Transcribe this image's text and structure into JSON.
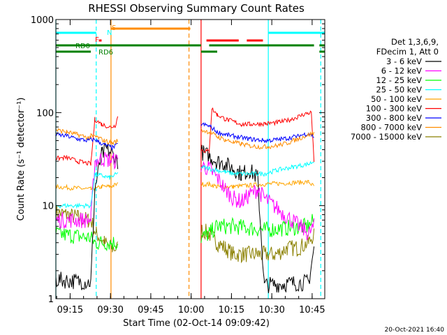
{
  "chart_data": {
    "type": "line",
    "title": "RHESSI Observing Summary Count Rates",
    "xlabel": "Start Time (02-Oct-14 09:09:42)",
    "ylabel": "Count Rate (s⁻¹ detector⁻¹)",
    "yscale": "log",
    "ylim": [
      1,
      1000
    ],
    "xlim_minutes": [
      0,
      100
    ],
    "x_ticks": [
      {
        "m": 5.3,
        "label": "09:15"
      },
      {
        "m": 20.3,
        "label": "09:30"
      },
      {
        "m": 35.3,
        "label": "09:45"
      },
      {
        "m": 50.3,
        "label": "10:00"
      },
      {
        "m": 65.3,
        "label": "10:15"
      },
      {
        "m": 80.3,
        "label": "10:30"
      },
      {
        "m": 95.3,
        "label": "10:45"
      }
    ],
    "y_ticks": [
      {
        "v": 1,
        "label": "1"
      },
      {
        "v": 10,
        "label": "10"
      },
      {
        "v": 100,
        "label": "100"
      },
      {
        "v": 1000,
        "label": "1000"
      }
    ],
    "legend_header": [
      "Det 1,3,6,9,",
      "FDecim 1, Att 0"
    ],
    "legend_position": "right",
    "series": [
      {
        "name": "3 - 6 keV",
        "color": "#000000",
        "values": [
          [
            0,
            1.6
          ],
          [
            13,
            1.5
          ],
          [
            14.5,
            15
          ],
          [
            17,
            35
          ],
          [
            19,
            40
          ],
          [
            21,
            36
          ],
          [
            23,
            30
          ],
          [
            54,
            38
          ],
          [
            57,
            34
          ],
          [
            60,
            30
          ],
          [
            63,
            28
          ],
          [
            66,
            25
          ],
          [
            69,
            22
          ],
          [
            72,
            24
          ],
          [
            75,
            20
          ],
          [
            77.5,
            1.4
          ],
          [
            94,
            1.5
          ],
          [
            96,
            3.5
          ]
        ]
      },
      {
        "name": "6 - 12 keV",
        "color": "#ff00ff",
        "values": [
          [
            0,
            7
          ],
          [
            13,
            7
          ],
          [
            14.5,
            30
          ],
          [
            17,
            32
          ],
          [
            20,
            31
          ],
          [
            23,
            30
          ],
          [
            54,
            27
          ],
          [
            57,
            25
          ],
          [
            60,
            20
          ],
          [
            63,
            15
          ],
          [
            66,
            12
          ],
          [
            69,
            11
          ],
          [
            72,
            13
          ],
          [
            75,
            15
          ],
          [
            77.5,
            12
          ],
          [
            94,
            5
          ],
          [
            96,
            6
          ]
        ]
      },
      {
        "name": "12 - 25 keV",
        "color": "#00ff00",
        "values": [
          [
            0,
            5
          ],
          [
            13,
            4.5
          ],
          [
            14.5,
            4
          ],
          [
            23,
            4
          ],
          [
            54,
            4.5
          ],
          [
            57,
            5
          ],
          [
            60,
            6
          ],
          [
            66,
            6
          ],
          [
            77.5,
            5.5
          ],
          [
            94,
            6
          ],
          [
            96,
            7
          ]
        ]
      },
      {
        "name": "25 - 50 keV",
        "color": "#00ffff",
        "values": [
          [
            0,
            10
          ],
          [
            13,
            10
          ],
          [
            14.5,
            22
          ],
          [
            17,
            21
          ],
          [
            20,
            20
          ],
          [
            23,
            22
          ],
          [
            54,
            26
          ],
          [
            57,
            25
          ],
          [
            60,
            24
          ],
          [
            63,
            23
          ],
          [
            66,
            22
          ],
          [
            69,
            22
          ],
          [
            72,
            22
          ],
          [
            75,
            22
          ],
          [
            77.5,
            22
          ],
          [
            82,
            24
          ],
          [
            88,
            26
          ],
          [
            94,
            28
          ],
          [
            96,
            30
          ]
        ]
      },
      {
        "name": "50 - 100 keV",
        "color": "#ffa500",
        "values": [
          [
            0,
            16
          ],
          [
            13,
            15
          ],
          [
            14.5,
            15
          ],
          [
            17,
            16
          ],
          [
            20,
            16
          ],
          [
            23,
            17
          ],
          [
            54,
            17
          ],
          [
            57,
            17
          ],
          [
            60,
            16
          ],
          [
            66,
            16
          ],
          [
            77.5,
            17
          ],
          [
            94,
            18
          ],
          [
            96,
            16
          ]
        ]
      },
      {
        "name": "100 - 300 keV",
        "color": "#ff0000",
        "values": [
          [
            0,
            32
          ],
          [
            4,
            33
          ],
          [
            8,
            30
          ],
          [
            13,
            28
          ],
          [
            14.5,
            85
          ],
          [
            17,
            75
          ],
          [
            20,
            70
          ],
          [
            22,
            72
          ],
          [
            23,
            90
          ],
          [
            54,
            40
          ],
          [
            57,
            38
          ],
          [
            58,
            110
          ],
          [
            60,
            95
          ],
          [
            63,
            85
          ],
          [
            66,
            80
          ],
          [
            69,
            75
          ],
          [
            72,
            75
          ],
          [
            75,
            76
          ],
          [
            78,
            76
          ],
          [
            82,
            78
          ],
          [
            86,
            82
          ],
          [
            90,
            90
          ],
          [
            93,
            98
          ],
          [
            95,
            100
          ],
          [
            96,
            30
          ]
        ]
      },
      {
        "name": "300 - 800 keV",
        "color": "#0000ff",
        "values": [
          [
            0,
            58
          ],
          [
            4,
            56
          ],
          [
            8,
            52
          ],
          [
            12,
            50
          ],
          [
            13,
            52
          ],
          [
            15,
            50
          ],
          [
            18,
            45
          ],
          [
            21,
            42
          ],
          [
            23,
            45
          ],
          [
            54,
            75
          ],
          [
            57,
            72
          ],
          [
            60,
            62
          ],
          [
            63,
            58
          ],
          [
            66,
            56
          ],
          [
            69,
            54
          ],
          [
            72,
            52
          ],
          [
            75,
            51
          ],
          [
            78,
            50
          ],
          [
            82,
            51
          ],
          [
            86,
            53
          ],
          [
            90,
            56
          ],
          [
            94,
            60
          ],
          [
            96,
            55
          ]
        ]
      },
      {
        "name": "800 - 7000 keV",
        "color": "#ff8c00",
        "values": [
          [
            0,
            65
          ],
          [
            4,
            62
          ],
          [
            8,
            58
          ],
          [
            12,
            54
          ],
          [
            13,
            56
          ],
          [
            15,
            55
          ],
          [
            18,
            50
          ],
          [
            21,
            47
          ],
          [
            23,
            50
          ],
          [
            54,
            65
          ],
          [
            57,
            62
          ],
          [
            60,
            55
          ],
          [
            63,
            51
          ],
          [
            66,
            48
          ],
          [
            69,
            46
          ],
          [
            72,
            44
          ],
          [
            75,
            43
          ],
          [
            78,
            43
          ],
          [
            82,
            44
          ],
          [
            86,
            47
          ],
          [
            90,
            52
          ],
          [
            94,
            58
          ],
          [
            96,
            60
          ]
        ]
      },
      {
        "name": "7000 - 15000 keV",
        "color": "#8b8000",
        "values": [
          [
            0,
            8.5
          ],
          [
            4,
            8
          ],
          [
            8,
            7.5
          ],
          [
            12,
            7
          ],
          [
            13,
            7
          ],
          [
            15,
            5
          ],
          [
            18,
            4
          ],
          [
            21,
            3.5
          ],
          [
            23,
            3.5
          ],
          [
            54,
            5.5
          ],
          [
            57,
            5
          ],
          [
            60,
            4
          ],
          [
            63,
            3.5
          ],
          [
            66,
            3
          ],
          [
            69,
            3
          ],
          [
            72,
            3
          ],
          [
            75,
            3
          ],
          [
            78,
            3
          ],
          [
            82,
            3
          ],
          [
            86,
            3.5
          ],
          [
            90,
            3.5
          ],
          [
            94,
            4
          ],
          [
            96,
            5
          ]
        ]
      }
    ],
    "flags": [
      {
        "label": "RD0",
        "color": "#008000",
        "segments": [
          [
            0,
            54
          ],
          [
            57,
            96
          ],
          [
            98,
            100
          ]
        ]
      },
      {
        "label": "RD6",
        "color": "#008000",
        "segments": [
          [
            0,
            13
          ],
          [
            54,
            60
          ],
          [
            98,
            100
          ]
        ]
      },
      {
        "label": "F",
        "color": "#ff0000",
        "segments": [
          [
            16,
            17
          ],
          [
            56,
            68
          ],
          [
            71,
            77
          ]
        ]
      },
      {
        "label": "N",
        "color": "#00ffff",
        "segments": [
          [
            0,
            15
          ],
          [
            79,
            100
          ]
        ]
      },
      {
        "label": "S",
        "color": "#ff8c00",
        "segments": [
          [
            20.5,
            50
          ]
        ]
      }
    ],
    "vlines": [
      {
        "m": 0,
        "color": "#00ffff",
        "dash": false
      },
      {
        "m": 15,
        "color": "#00ffff",
        "dash": true
      },
      {
        "m": 20.5,
        "color": "#ff8c00",
        "dash": false
      },
      {
        "m": 49.5,
        "color": "#ff8c00",
        "dash": true
      },
      {
        "m": 54,
        "color": "#ff0000",
        "dash": false
      },
      {
        "m": 79,
        "color": "#00ffff",
        "dash": false
      },
      {
        "m": 98.5,
        "color": "#00ffff",
        "dash": true
      }
    ],
    "grid": false
  },
  "timestamp": "20-Oct-2021 16:40"
}
